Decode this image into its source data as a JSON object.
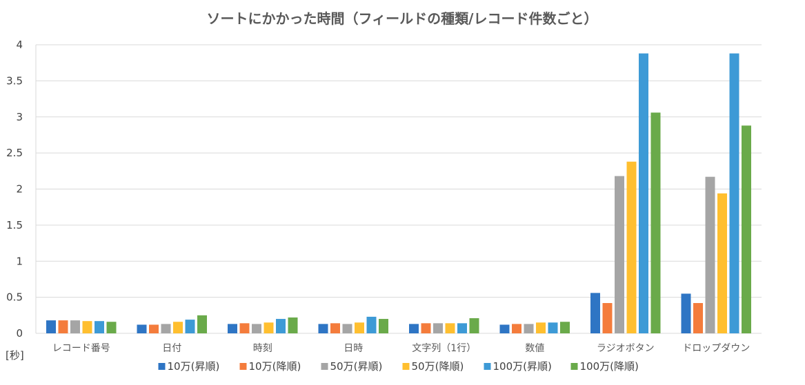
{
  "chart_data": {
    "type": "bar",
    "title": "ソートにかかった時間（フィールドの種類/レコード件数ごと）",
    "ylabel": "[秒]",
    "xlabel": "",
    "ylim": [
      0,
      4
    ],
    "yticks": [
      "0",
      "0.5",
      "1",
      "1.5",
      "2",
      "2.5",
      "3",
      "3.5",
      "4"
    ],
    "grid": true,
    "legend_position": "bottom",
    "categories": [
      "レコード番号",
      "日付",
      "時刻",
      "日時",
      "文字列（1行）",
      "数値",
      "ラジオボタン",
      "ドロップダウン"
    ],
    "series": [
      {
        "name": "10万(昇順)",
        "color": "#2e75c4",
        "values": [
          0.18,
          0.12,
          0.13,
          0.13,
          0.13,
          0.12,
          0.56,
          0.55
        ]
      },
      {
        "name": "10万(降順)",
        "color": "#f47c3c",
        "values": [
          0.18,
          0.12,
          0.14,
          0.14,
          0.14,
          0.13,
          0.42,
          0.42
        ]
      },
      {
        "name": "50万(昇順)",
        "color": "#a5a5a5",
        "values": [
          0.18,
          0.13,
          0.13,
          0.13,
          0.14,
          0.13,
          2.18,
          2.17
        ]
      },
      {
        "name": "50万(降順)",
        "color": "#ffbf2f",
        "values": [
          0.17,
          0.16,
          0.15,
          0.15,
          0.14,
          0.15,
          2.38,
          1.94
        ]
      },
      {
        "name": "100万(昇順)",
        "color": "#3d9ad6",
        "values": [
          0.17,
          0.19,
          0.2,
          0.23,
          0.14,
          0.15,
          3.88,
          3.88
        ]
      },
      {
        "name": "100万(降順)",
        "color": "#6aaa4a",
        "values": [
          0.16,
          0.25,
          0.22,
          0.2,
          0.21,
          0.16,
          3.06,
          2.88
        ]
      }
    ]
  }
}
